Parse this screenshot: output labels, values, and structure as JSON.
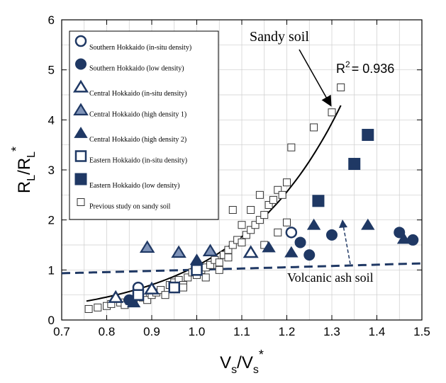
{
  "chart_data": {
    "type": "scatter",
    "xlabel_main": "V",
    "xlabel_sub": "s",
    "xlabel_sep": "/V",
    "xlabel_sub2": "s",
    "xlabel_sup2": "*",
    "ylabel_main": "R",
    "ylabel_sub": "L",
    "ylabel_sep": "/R",
    "ylabel_sub2": "L",
    "ylabel_sup2": "*",
    "xlim": [
      0.7,
      1.5
    ],
    "ylim": [
      0,
      6
    ],
    "xticks": [
      "0.7",
      "0.8",
      "0.9",
      "1.0",
      "1.1",
      "1.2",
      "1.3",
      "1.4",
      "1.5"
    ],
    "xtick_values": [
      0.7,
      0.8,
      0.9,
      1.0,
      1.1,
      1.2,
      1.3,
      1.4,
      1.5
    ],
    "yticks": [
      "0",
      "1",
      "2",
      "3",
      "4",
      "5",
      "6"
    ],
    "ytick_values": [
      0,
      1,
      2,
      3,
      4,
      5,
      6
    ],
    "grid": true,
    "legend_position": "top-left",
    "annotations": {
      "sandy": "Sandy soil",
      "volcanic": "Volcanic ash soil",
      "r2_prefix": "R",
      "r2_sup": "2",
      "r2_value": "= 0.936"
    },
    "series": [
      {
        "name": "Southern Hokkaido (in-situ density)",
        "marker": "circle-open",
        "points": [
          [
            0.87,
            0.65
          ],
          [
            1.21,
            1.75
          ]
        ]
      },
      {
        "name": "Southern Hokkaido (low density)",
        "marker": "circle-filled",
        "points": [
          [
            0.85,
            0.4
          ],
          [
            1.23,
            1.55
          ],
          [
            1.25,
            1.3
          ],
          [
            1.3,
            1.7
          ],
          [
            1.45,
            1.75
          ],
          [
            1.48,
            1.6
          ]
        ]
      },
      {
        "name": "Central Hokkaido (in-situ density)",
        "marker": "triangle-open",
        "points": [
          [
            0.82,
            0.45
          ],
          [
            0.9,
            0.62
          ],
          [
            1.12,
            1.35
          ]
        ]
      },
      {
        "name": "Central Hokkaido (high density 1)",
        "marker": "triangle-light",
        "points": [
          [
            0.89,
            1.45
          ],
          [
            0.96,
            1.35
          ],
          [
            1.03,
            1.38
          ]
        ]
      },
      {
        "name": "Central Hokkaido (high density 2)",
        "marker": "triangle-filled",
        "points": [
          [
            0.86,
            0.35
          ],
          [
            1.0,
            1.2
          ],
          [
            1.16,
            1.45
          ],
          [
            1.21,
            1.35
          ],
          [
            1.26,
            1.9
          ],
          [
            1.38,
            1.9
          ],
          [
            1.46,
            1.62
          ]
        ]
      },
      {
        "name": "Eastern Hokkaido (in-situ density)",
        "marker": "square-open",
        "points": [
          [
            0.87,
            0.5
          ],
          [
            0.95,
            0.65
          ],
          [
            1.0,
            1.0
          ]
        ]
      },
      {
        "name": "Eastern Hokkaido (low density)",
        "marker": "square-filled",
        "points": [
          [
            1.27,
            2.38
          ],
          [
            1.35,
            3.12
          ],
          [
            1.38,
            3.7
          ]
        ]
      },
      {
        "name": "Previous study on sandy soil",
        "marker": "square-small",
        "points": [
          [
            0.76,
            0.22
          ],
          [
            0.78,
            0.25
          ],
          [
            0.8,
            0.28
          ],
          [
            0.81,
            0.32
          ],
          [
            0.83,
            0.35
          ],
          [
            0.84,
            0.3
          ],
          [
            0.85,
            0.38
          ],
          [
            0.86,
            0.42
          ],
          [
            0.88,
            0.45
          ],
          [
            0.89,
            0.4
          ],
          [
            0.9,
            0.5
          ],
          [
            0.91,
            0.55
          ],
          [
            0.92,
            0.6
          ],
          [
            0.93,
            0.5
          ],
          [
            0.94,
            0.7
          ],
          [
            0.95,
            0.75
          ],
          [
            0.96,
            0.8
          ],
          [
            0.97,
            0.7
          ],
          [
            0.98,
            0.85
          ],
          [
            0.99,
            0.95
          ],
          [
            1.0,
            0.9
          ],
          [
            1.01,
            1.0
          ],
          [
            1.02,
            1.05
          ],
          [
            1.03,
            1.1
          ],
          [
            1.04,
            1.2
          ],
          [
            1.05,
            1.15
          ],
          [
            1.06,
            1.3
          ],
          [
            1.07,
            1.4
          ],
          [
            1.08,
            1.5
          ],
          [
            1.09,
            1.6
          ],
          [
            1.1,
            1.55
          ],
          [
            1.11,
            1.7
          ],
          [
            1.12,
            1.8
          ],
          [
            1.13,
            1.9
          ],
          [
            1.14,
            2.0
          ],
          [
            1.15,
            2.1
          ],
          [
            1.16,
            2.3
          ],
          [
            1.17,
            2.4
          ],
          [
            1.18,
            2.6
          ],
          [
            1.19,
            2.5
          ],
          [
            1.2,
            2.75
          ],
          [
            1.08,
            2.2
          ],
          [
            1.1,
            1.9
          ],
          [
            1.12,
            2.2
          ],
          [
            1.14,
            2.5
          ],
          [
            1.2,
            1.95
          ],
          [
            1.21,
            3.45
          ],
          [
            1.26,
            3.85
          ],
          [
            1.3,
            4.15
          ],
          [
            1.32,
            4.65
          ],
          [
            1.15,
            1.5
          ],
          [
            1.18,
            1.75
          ],
          [
            1.05,
            1.0
          ],
          [
            1.02,
            0.85
          ],
          [
            0.97,
            0.65
          ],
          [
            1.07,
            1.25
          ]
        ]
      }
    ],
    "fits": [
      {
        "kind": "sandy",
        "a": 0.0147,
        "b": 4.3,
        "x_from": 0.755,
        "x_to": 1.32
      },
      {
        "kind": "volcanic",
        "a": 0.79,
        "b": 0.24,
        "x_from": 0.7,
        "x_to": 1.5
      }
    ]
  }
}
